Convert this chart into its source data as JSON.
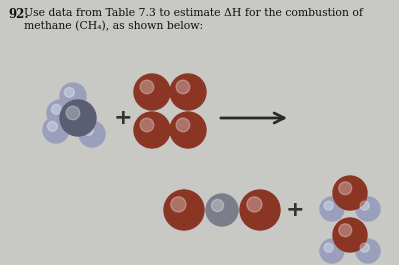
{
  "bg_color": "#c8c8c4",
  "page_color": "#d6d4cc",
  "methane_c_color": "#5a5e72",
  "methane_h_color": "#9aa0bc",
  "o2_color": "#8B3525",
  "co2_gray_color": "#7a7e8a",
  "water_o_color": "#8B3525",
  "water_h_color": "#9aa0bc",
  "arrow_color": "#2a2a2a",
  "text_color": "#111111",
  "title_num": "92.",
  "title_body": "Use data from Table 7.3 to estimate ΔH for the combustion of\nmethane (CH₄), as shown below:",
  "figsize": [
    3.99,
    2.65
  ],
  "dpi": 100
}
